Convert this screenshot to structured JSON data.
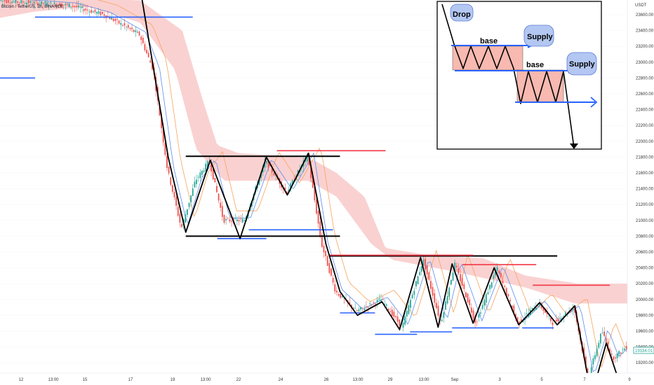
{
  "header": {
    "title": "Bitcoin / TetherUS, 2h, BINANCE"
  },
  "price_axis": {
    "unit": "USDT",
    "current_price": "19334.01"
  },
  "inset": {
    "labels": {
      "drop": "Drop",
      "base_1": "base",
      "supply_1": "Supply",
      "base_2": "base",
      "supply_2": "Supply"
    }
  },
  "colors": {
    "cloud": "#f9c9c9",
    "bull": "#26a69a",
    "bear": "#ef5350",
    "support_line": "#2962ff",
    "resistance_line": "#f23645",
    "pattern_line": "#000000",
    "bubble_fill": "#b3c7f2",
    "zone_fill": "#f7b9b0"
  },
  "chart_data": {
    "type": "candlestick",
    "title": "Bitcoin / TetherUS, 2h, BINANCE",
    "ylabel": "USDT",
    "ylim": [
      19000,
      23800
    ],
    "y_ticks": [
      "23600.00",
      "23400.00",
      "23200.00",
      "23000.00",
      "22800.00",
      "22600.00",
      "22400.00",
      "22200.00",
      "22000.00",
      "21800.00",
      "21600.00",
      "21400.00",
      "21200.00",
      "21000.00",
      "20800.00",
      "20600.00",
      "20400.00",
      "20200.00",
      "20000.00",
      "19800.00",
      "19600.00",
      "19400.00",
      "19200.00"
    ],
    "x_ticks": [
      "12",
      "13:00",
      "15",
      "17",
      "19",
      "13:00",
      "22",
      "24",
      "26",
      "13:00",
      "29",
      "13:00",
      "Sep",
      "3",
      "5",
      "7",
      "9"
    ],
    "price_path": [
      {
        "t": 0.0,
        "p": 23780
      },
      {
        "t": 2.0,
        "p": 23720
      },
      {
        "t": 3.0,
        "p": 23600
      },
      {
        "t": 4.0,
        "p": 23350
      },
      {
        "t": 4.4,
        "p": 22900
      },
      {
        "t": 4.8,
        "p": 21650
      },
      {
        "t": 5.2,
        "p": 20900
      },
      {
        "t": 5.6,
        "p": 21500
      },
      {
        "t": 6.0,
        "p": 21750
      },
      {
        "t": 6.4,
        "p": 21000
      },
      {
        "t": 7.0,
        "p": 21000
      },
      {
        "t": 7.6,
        "p": 21750
      },
      {
        "t": 8.2,
        "p": 21350
      },
      {
        "t": 8.8,
        "p": 21820
      },
      {
        "t": 9.2,
        "p": 20700
      },
      {
        "t": 9.6,
        "p": 20100
      },
      {
        "t": 10.2,
        "p": 19850
      },
      {
        "t": 10.9,
        "p": 20000
      },
      {
        "t": 11.5,
        "p": 19650
      },
      {
        "t": 12.1,
        "p": 20500
      },
      {
        "t": 12.6,
        "p": 19700
      },
      {
        "t": 13.0,
        "p": 20450
      },
      {
        "t": 13.6,
        "p": 19700
      },
      {
        "t": 14.2,
        "p": 20400
      },
      {
        "t": 14.8,
        "p": 19700
      },
      {
        "t": 15.4,
        "p": 19950
      },
      {
        "t": 15.8,
        "p": 19700
      },
      {
        "t": 16.4,
        "p": 19900
      },
      {
        "t": 16.8,
        "p": 19000
      },
      {
        "t": 17.2,
        "p": 19600
      },
      {
        "t": 17.5,
        "p": 19250
      },
      {
        "t": 17.9,
        "p": 19400
      }
    ],
    "cloud_top": [
      {
        "t": 0.0,
        "p": 23800
      },
      {
        "t": 3.0,
        "p": 23800
      },
      {
        "t": 4.0,
        "p": 23780
      },
      {
        "t": 5.2,
        "p": 23400
      },
      {
        "t": 5.8,
        "p": 22500
      },
      {
        "t": 6.2,
        "p": 21950
      },
      {
        "t": 6.8,
        "p": 21850
      },
      {
        "t": 8.6,
        "p": 21800
      },
      {
        "t": 9.0,
        "p": 21750
      },
      {
        "t": 9.6,
        "p": 21600
      },
      {
        "t": 10.4,
        "p": 21300
      },
      {
        "t": 11.0,
        "p": 20650
      },
      {
        "t": 12.2,
        "p": 20560
      },
      {
        "t": 13.8,
        "p": 20520
      },
      {
        "t": 15.0,
        "p": 20300
      },
      {
        "t": 16.5,
        "p": 20200
      },
      {
        "t": 17.9,
        "p": 20200
      }
    ],
    "cloud_bottom": [
      {
        "t": 0.0,
        "p": 23560
      },
      {
        "t": 1.0,
        "p": 23640
      },
      {
        "t": 2.5,
        "p": 23700
      },
      {
        "t": 4.0,
        "p": 23500
      },
      {
        "t": 5.0,
        "p": 22900
      },
      {
        "t": 5.6,
        "p": 21900
      },
      {
        "t": 6.4,
        "p": 21500
      },
      {
        "t": 8.8,
        "p": 21500
      },
      {
        "t": 9.6,
        "p": 21300
      },
      {
        "t": 10.6,
        "p": 20700
      },
      {
        "t": 11.2,
        "p": 20500
      },
      {
        "t": 13.0,
        "p": 20350
      },
      {
        "t": 15.0,
        "p": 20150
      },
      {
        "t": 16.4,
        "p": 19950
      },
      {
        "t": 17.9,
        "p": 19950
      }
    ],
    "pattern_path": [
      {
        "t": 4.05,
        "p": 23800
      },
      {
        "t": 4.8,
        "p": 21800
      },
      {
        "t": 5.3,
        "p": 20850
      },
      {
        "t": 6.0,
        "p": 21760
      },
      {
        "t": 6.85,
        "p": 20770
      },
      {
        "t": 7.6,
        "p": 21800
      },
      {
        "t": 8.2,
        "p": 21320
      },
      {
        "t": 8.8,
        "p": 21850
      },
      {
        "t": 9.3,
        "p": 20700
      },
      {
        "t": 9.7,
        "p": 20100
      },
      {
        "t": 10.2,
        "p": 19800
      },
      {
        "t": 10.9,
        "p": 19970
      },
      {
        "t": 11.4,
        "p": 19620
      },
      {
        "t": 12.0,
        "p": 20530
      },
      {
        "t": 12.5,
        "p": 19650
      },
      {
        "t": 12.9,
        "p": 20450
      },
      {
        "t": 13.5,
        "p": 19700
      },
      {
        "t": 14.1,
        "p": 20400
      },
      {
        "t": 14.8,
        "p": 19680
      },
      {
        "t": 15.4,
        "p": 19960
      },
      {
        "t": 15.9,
        "p": 19680
      },
      {
        "t": 16.4,
        "p": 19920
      },
      {
        "t": 16.8,
        "p": 18950
      }
    ],
    "pattern_path_2": [
      {
        "t": 17.05,
        "p": 19050
      },
      {
        "t": 17.3,
        "p": 19450
      },
      {
        "t": 17.6,
        "p": 19050
      }
    ],
    "levels": [
      {
        "color": "support",
        "t1": 1.0,
        "t2": 5.5,
        "p": 23570
      },
      {
        "color": "support",
        "t1": 0.0,
        "t2": 1.0,
        "p": 22800
      },
      {
        "color": "pattern",
        "t1": 5.3,
        "t2": 9.7,
        "p": 21810
      },
      {
        "color": "pattern",
        "t1": 5.3,
        "t2": 9.7,
        "p": 20800
      },
      {
        "color": "resistance",
        "t1": 7.9,
        "t2": 11.0,
        "p": 21880
      },
      {
        "color": "support",
        "t1": 6.2,
        "t2": 7.6,
        "p": 20770
      },
      {
        "color": "support",
        "t1": 7.1,
        "t2": 9.5,
        "p": 20880
      },
      {
        "color": "pattern",
        "t1": 9.4,
        "t2": 15.9,
        "p": 20550
      },
      {
        "color": "resistance",
        "t1": 9.4,
        "t2": 13.5,
        "p": 20560
      },
      {
        "color": "resistance",
        "t1": 13.2,
        "t2": 15.3,
        "p": 20440
      },
      {
        "color": "resistance",
        "t1": 15.2,
        "t2": 17.4,
        "p": 20180
      },
      {
        "color": "support",
        "t1": 9.7,
        "t2": 10.7,
        "p": 19830
      },
      {
        "color": "support",
        "t1": 10.7,
        "t2": 11.9,
        "p": 19560
      },
      {
        "color": "support",
        "t1": 11.7,
        "t2": 12.9,
        "p": 19590
      },
      {
        "color": "support",
        "t1": 12.9,
        "t2": 14.8,
        "p": 19640
      },
      {
        "color": "support",
        "t1": 14.9,
        "t2": 15.8,
        "p": 19640
      }
    ]
  }
}
